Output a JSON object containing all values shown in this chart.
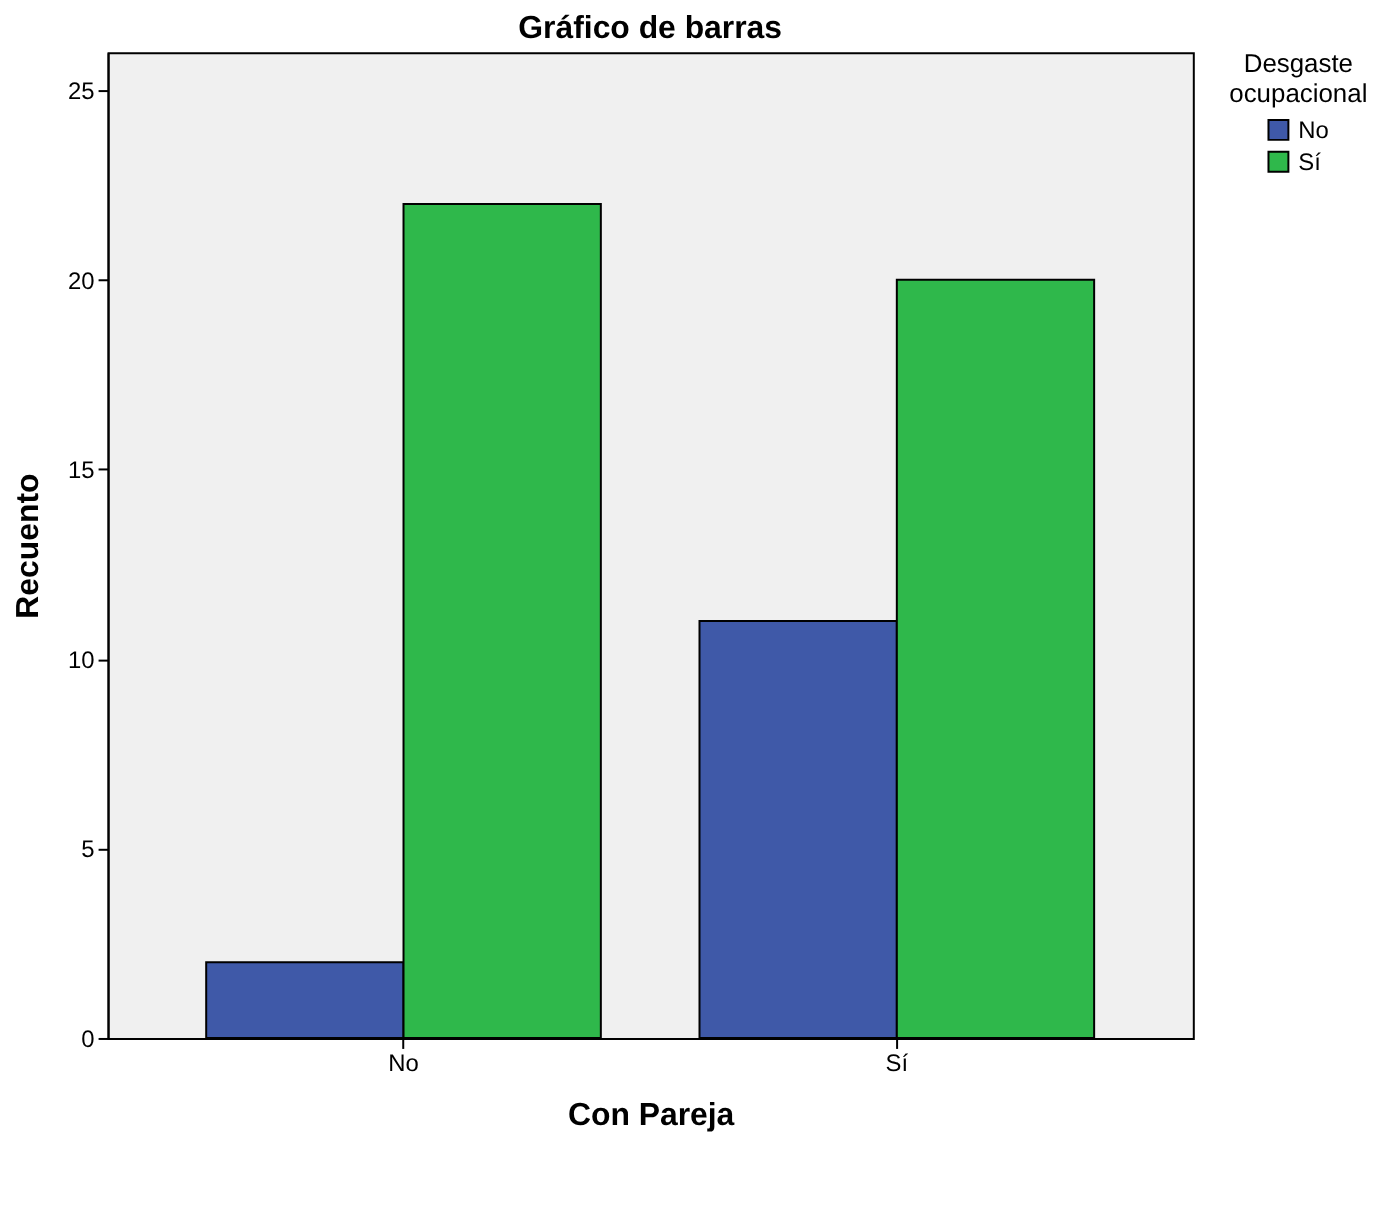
{
  "chart_data": {
    "type": "bar",
    "title": "Gráfico de barras",
    "xlabel": "Con Pareja",
    "ylabel": "Recuento",
    "legend_title": "Desgaste ocupacional",
    "categories": [
      "No",
      "Sí"
    ],
    "series": [
      {
        "name": "No",
        "color": "#3f59a8",
        "values": [
          2,
          11
        ]
      },
      {
        "name": "Sí",
        "color": "#2fb84b",
        "values": [
          22,
          20
        ]
      }
    ],
    "ylim": [
      0,
      26
    ],
    "yticks": [
      0,
      5,
      10,
      15,
      20,
      25
    ],
    "grid": false,
    "legend": "top right"
  }
}
